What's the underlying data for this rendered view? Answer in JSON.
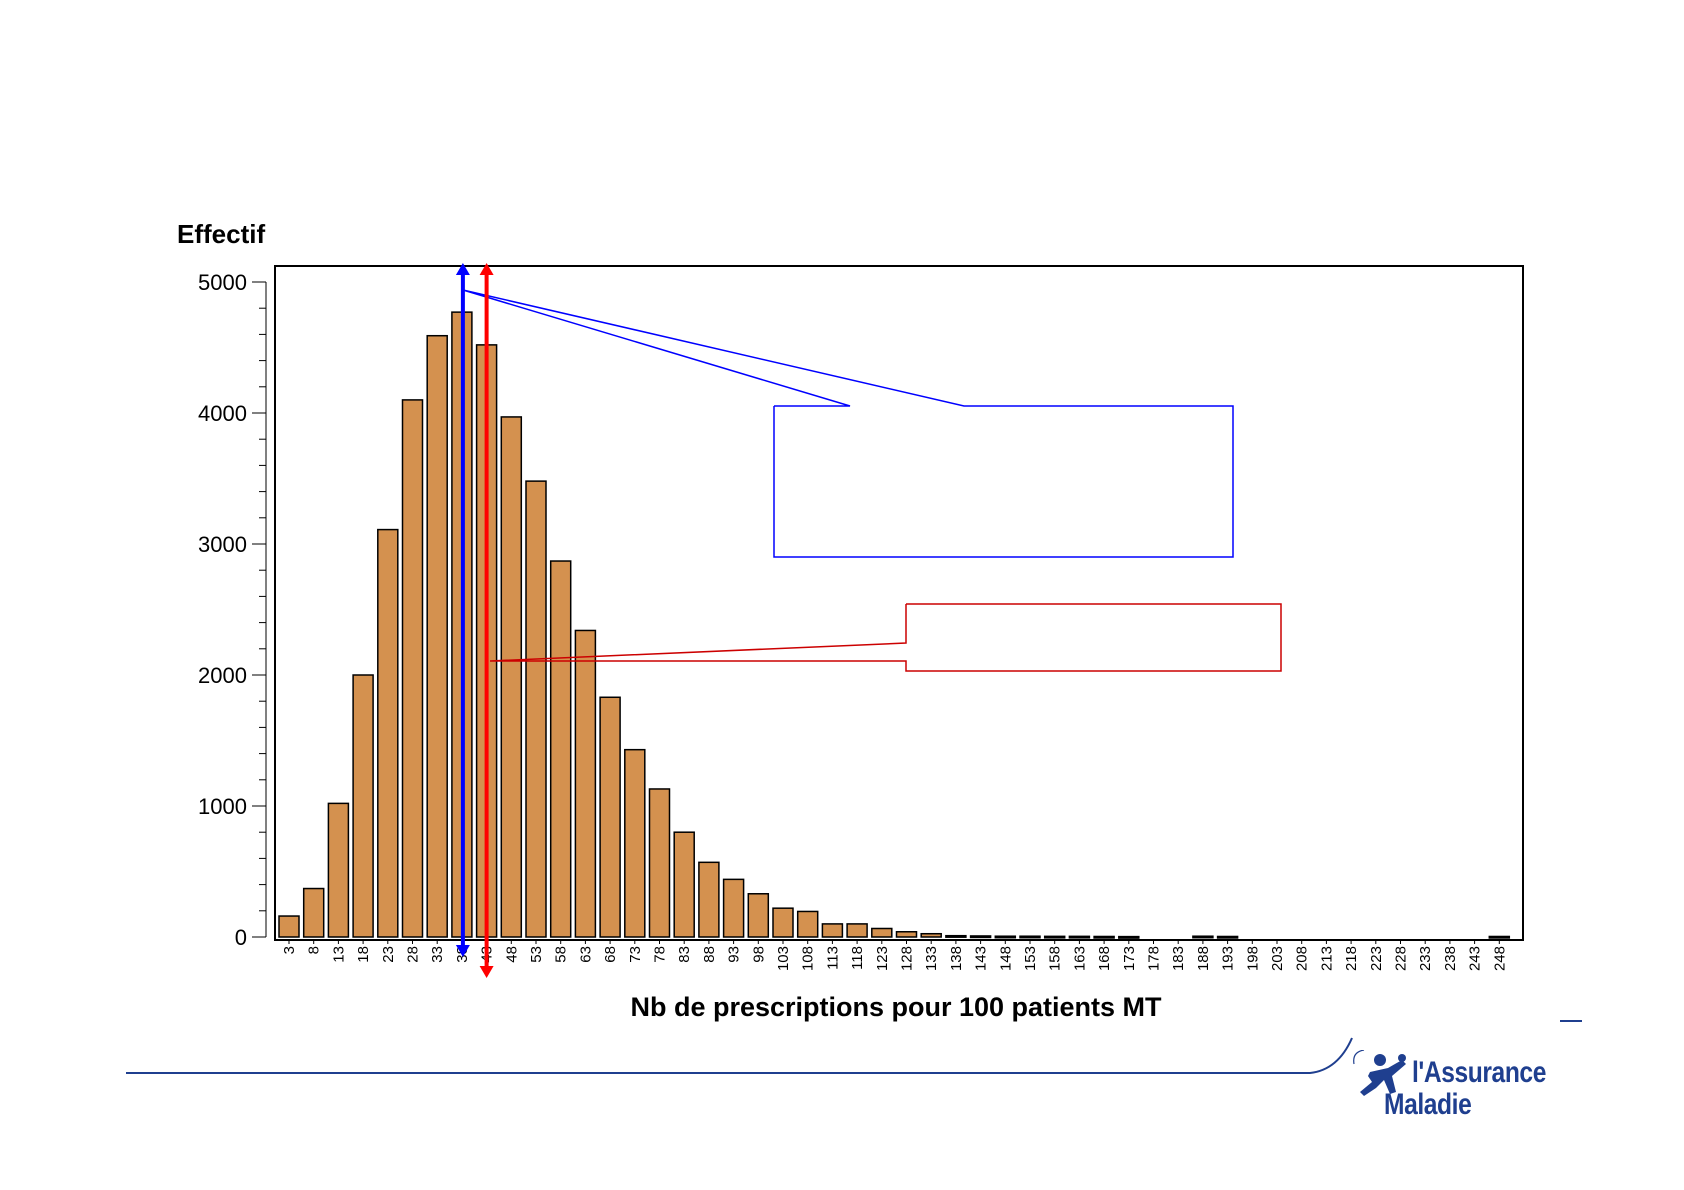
{
  "chart_data": {
    "type": "bar",
    "ylabel": "Effectif",
    "xlabel": "Nb de prescriptions pour 100 patients MT",
    "categories": [
      "3",
      "8",
      "13",
      "18",
      "23",
      "28",
      "33",
      "38",
      "43",
      "48",
      "53",
      "58",
      "63",
      "68",
      "73",
      "78",
      "83",
      "88",
      "93",
      "98",
      "103",
      "108",
      "113",
      "118",
      "123",
      "128",
      "133",
      "138",
      "143",
      "148",
      "153",
      "158",
      "163",
      "168",
      "173",
      "178",
      "183",
      "188",
      "193",
      "198",
      "203",
      "208",
      "213",
      "218",
      "223",
      "228",
      "233",
      "238",
      "243",
      "248"
    ],
    "values": [
      160,
      370,
      1020,
      2000,
      3110,
      4100,
      4590,
      4770,
      4520,
      3970,
      3480,
      2870,
      2340,
      1830,
      1430,
      1130,
      800,
      570,
      440,
      330,
      220,
      195,
      100,
      100,
      65,
      40,
      25,
      10,
      8,
      6,
      6,
      5,
      5,
      4,
      3,
      0,
      0,
      6,
      4,
      0,
      0,
      0,
      0,
      0,
      0,
      0,
      0,
      0,
      0,
      4
    ],
    "ylim": [
      0,
      5000
    ],
    "yticks": [
      0,
      1000,
      2000,
      3000,
      4000,
      5000
    ],
    "bar_color": "#d4914f",
    "bar_stroke": "#000000",
    "markers": [
      {
        "color": "#0000ff",
        "x_value": 38
      },
      {
        "color": "#ff0000",
        "x_value": 43
      }
    ]
  },
  "callouts": {
    "blue_color": "#0000ff",
    "red_color": "#cc0000"
  },
  "footer": {
    "line_color": "#1f3f8f"
  },
  "logo": {
    "line1": "l'Assurance",
    "line2": "Maladie",
    "color": "#1f3f8f"
  }
}
